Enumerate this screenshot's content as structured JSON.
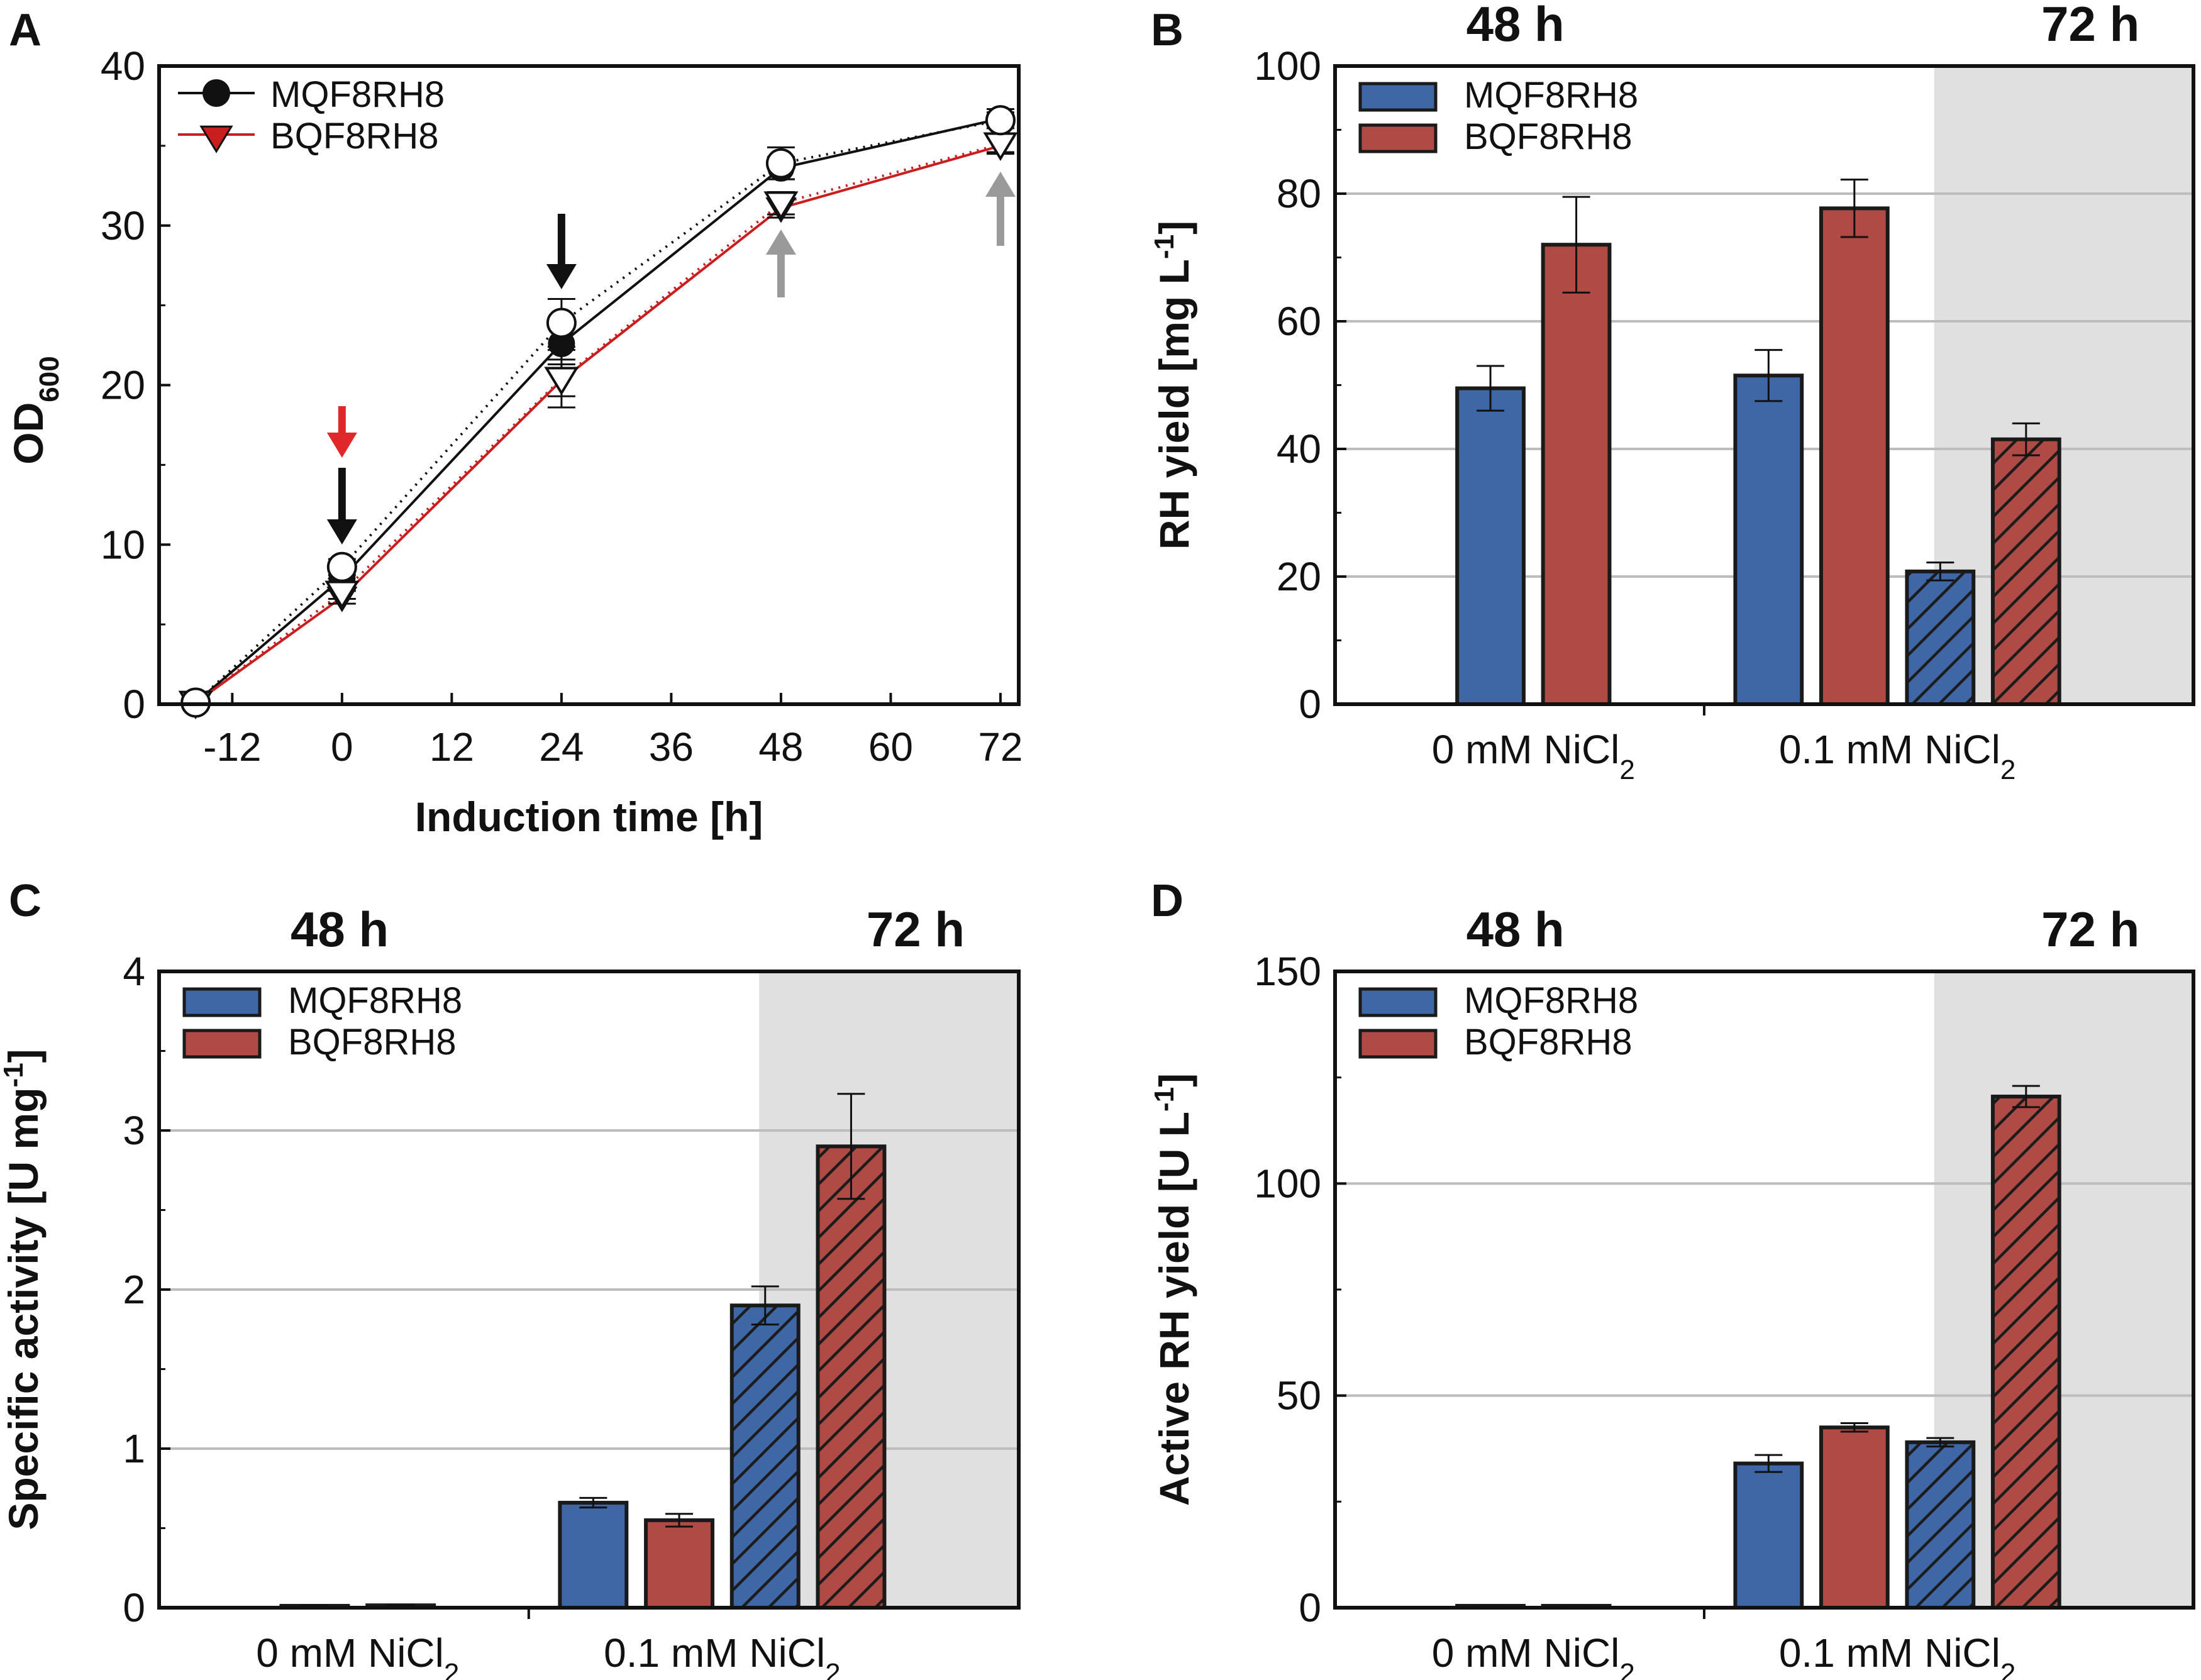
{
  "colors": {
    "mqf": "#3f67a6",
    "bqf": "#b04a45",
    "red_series": "#c81e1e",
    "shade": "#e0e0e0",
    "grid": "#bdbdbd",
    "gray_arrow": "#9a9a9a",
    "red_arrow": "#e0282a"
  },
  "legend": {
    "mqf": "MQF8RH8",
    "bqf": "BQF8RH8"
  },
  "chart_data": [
    {
      "panel": "A",
      "type": "line",
      "xlabel": "Induction time [h]",
      "ylabel_main": "OD",
      "ylabel_sub": "600",
      "xlim": [
        -20,
        74
      ],
      "ylim": [
        0,
        40
      ],
      "xticks": [
        "-12",
        "0",
        "12",
        "24",
        "36",
        "48",
        "60",
        "72"
      ],
      "yticks": [
        "0",
        "10",
        "20",
        "30",
        "40"
      ],
      "series": [
        {
          "name": "MQF8RH8",
          "marker": "circle-filled",
          "x": [
            -16,
            0,
            24,
            48,
            72
          ],
          "y": [
            0.1,
            7.9,
            22.6,
            33.6,
            36.7
          ],
          "err": [
            0.2,
            0.5,
            1.0,
            0.7,
            0.6
          ]
        },
        {
          "name": "BQF8RH8",
          "marker": "triangle-filled",
          "x": [
            -16,
            0,
            24,
            48,
            72
          ],
          "y": [
            0.1,
            6.7,
            20.3,
            31.1,
            35.0
          ],
          "err": [
            0.2,
            0.4,
            1.0,
            0.6,
            0.5
          ]
        },
        {
          "name": "MQF8RH8 (open)",
          "marker": "circle-open",
          "x": [
            -16,
            0,
            24,
            48,
            72
          ],
          "y": [
            0.1,
            8.6,
            23.9,
            33.9,
            36.6
          ],
          "err": [
            0.2,
            0.5,
            1.5,
            1.0,
            0.5
          ]
        },
        {
          "name": "BQF8RH8 (open)",
          "marker": "triangle-open",
          "x": [
            -16,
            0,
            24,
            48,
            72
          ],
          "y": [
            0.1,
            7.0,
            20.4,
            31.4,
            35.1
          ],
          "err": [
            0.2,
            0.4,
            1.8,
            0.7,
            0.5
          ]
        }
      ],
      "arrows": [
        {
          "x": 0,
          "color": "red",
          "dir": "down"
        },
        {
          "x": 0,
          "color": "black",
          "dir": "down"
        },
        {
          "x": 24,
          "color": "black",
          "dir": "down"
        },
        {
          "x": 48,
          "color": "gray",
          "dir": "up"
        },
        {
          "x": 72,
          "color": "gray",
          "dir": "up"
        }
      ]
    },
    {
      "panel": "B",
      "type": "bar",
      "headers": [
        "48 h",
        "72 h"
      ],
      "ylabel": "RH yield [mg L",
      "ylabel_sup": "-1",
      "ylabel_end": "]",
      "ylim": [
        0,
        100
      ],
      "yticks": [
        "0",
        "20",
        "40",
        "60",
        "80",
        "100"
      ],
      "groups": [
        {
          "label": "0 mM NiCl",
          "sub": "2",
          "bars": [
            {
              "series": "MQF8RH8",
              "time": "48 h",
              "value": 49.5,
              "err": 3.5
            },
            {
              "series": "BQF8RH8",
              "time": "48 h",
              "value": 72.0,
              "err": 7.5
            }
          ]
        },
        {
          "label": "0.1 mM NiCl",
          "sub": "2",
          "bars": [
            {
              "series": "MQF8RH8",
              "time": "48 h",
              "value": 51.5,
              "err": 4.0
            },
            {
              "series": "BQF8RH8",
              "time": "48 h",
              "value": 77.7,
              "err": 4.5
            },
            {
              "series": "MQF8RH8",
              "time": "72 h",
              "value": 20.8,
              "err": 1.4
            },
            {
              "series": "BQF8RH8",
              "time": "72 h",
              "value": 41.5,
              "err": 2.5
            }
          ]
        }
      ]
    },
    {
      "panel": "C",
      "type": "bar",
      "headers": [
        "48 h",
        "72 h"
      ],
      "ylabel": "Specific activity [U mg",
      "ylabel_sup": "-1",
      "ylabel_end": "]",
      "ylim": [
        0,
        4
      ],
      "yticks": [
        "0",
        "1",
        "2",
        "3",
        "4"
      ],
      "groups": [
        {
          "label": "0 mM NiCl",
          "sub": "2",
          "bars": [
            {
              "series": "MQF8RH8",
              "time": "48 h",
              "value": 0.01,
              "err": 0.005
            },
            {
              "series": "BQF8RH8",
              "time": "48 h",
              "value": 0.015,
              "err": 0.005
            }
          ]
        },
        {
          "label": "0.1 mM NiCl",
          "sub": "2",
          "bars": [
            {
              "series": "MQF8RH8",
              "time": "48 h",
              "value": 0.66,
              "err": 0.03
            },
            {
              "series": "BQF8RH8",
              "time": "48 h",
              "value": 0.55,
              "err": 0.04
            },
            {
              "series": "MQF8RH8",
              "time": "72 h",
              "value": 1.9,
              "err": 0.12
            },
            {
              "series": "BQF8RH8",
              "time": "72 h",
              "value": 2.9,
              "err": 0.33
            }
          ]
        }
      ]
    },
    {
      "panel": "D",
      "type": "bar",
      "headers": [
        "48 h",
        "72 h"
      ],
      "ylabel": "Active RH yield [U L",
      "ylabel_sup": "-1",
      "ylabel_end": "]",
      "ylim": [
        0,
        150
      ],
      "yticks": [
        "0",
        "50",
        "100",
        "150"
      ],
      "groups": [
        {
          "label": "0 mM NiCl",
          "sub": "2",
          "bars": [
            {
              "series": "MQF8RH8",
              "time": "48 h",
              "value": 0.2,
              "err": 0.1
            },
            {
              "series": "BQF8RH8",
              "time": "48 h",
              "value": 0.2,
              "err": 0.1
            }
          ]
        },
        {
          "label": "0.1 mM NiCl",
          "sub": "2",
          "bars": [
            {
              "series": "MQF8RH8",
              "time": "48 h",
              "value": 34.0,
              "err": 2.0
            },
            {
              "series": "BQF8RH8",
              "time": "48 h",
              "value": 42.5,
              "err": 1.0
            },
            {
              "series": "MQF8RH8",
              "time": "72 h",
              "value": 39.0,
              "err": 1.0
            },
            {
              "series": "BQF8RH8",
              "time": "72 h",
              "value": 120.5,
              "err": 2.5
            }
          ]
        }
      ]
    }
  ]
}
